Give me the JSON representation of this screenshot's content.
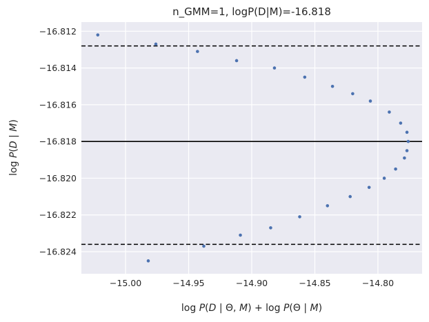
{
  "chart_data": {
    "type": "scatter",
    "title": "n_GMM=1, logP(D|M)=-16.818",
    "xlabel": "log P(D | Θ, M) + log P(Θ | M)",
    "ylabel": "log P(D | M)",
    "xlim": [
      -15.035,
      -14.765
    ],
    "ylim": [
      -16.8252,
      -16.8115
    ],
    "xticks": [
      "−15.00",
      "−14.95",
      "−14.90",
      "−14.85",
      "−14.80"
    ],
    "xtick_values": [
      -15.0,
      -14.95,
      -14.9,
      -14.85,
      -14.8
    ],
    "yticks": [
      "−16.812",
      "−16.814",
      "−16.816",
      "−16.818",
      "−16.820",
      "−16.822",
      "−16.824"
    ],
    "ytick_values": [
      -16.812,
      -16.814,
      -16.816,
      -16.818,
      -16.82,
      -16.822,
      -16.824
    ],
    "grid": true,
    "background": "#eaeaf2",
    "point_color": "#4c72b0",
    "hlines": [
      {
        "y": -16.8128,
        "style": "dashed",
        "color": "#000000"
      },
      {
        "y": -16.818,
        "style": "solid",
        "color": "#000000"
      },
      {
        "y": -16.8236,
        "style": "dashed",
        "color": "#000000"
      }
    ],
    "points": [
      {
        "x": -15.022,
        "y": -16.8122
      },
      {
        "x": -14.976,
        "y": -16.8127
      },
      {
        "x": -14.943,
        "y": -16.8131
      },
      {
        "x": -14.912,
        "y": -16.8136
      },
      {
        "x": -14.882,
        "y": -16.814
      },
      {
        "x": -14.858,
        "y": -16.8145
      },
      {
        "x": -14.836,
        "y": -16.815
      },
      {
        "x": -14.82,
        "y": -16.8154
      },
      {
        "x": -14.806,
        "y": -16.8158
      },
      {
        "x": -14.791,
        "y": -16.8164
      },
      {
        "x": -14.782,
        "y": -16.817
      },
      {
        "x": -14.777,
        "y": -16.8175
      },
      {
        "x": -14.776,
        "y": -16.818
      },
      {
        "x": -14.777,
        "y": -16.8185
      },
      {
        "x": -14.779,
        "y": -16.8189
      },
      {
        "x": -14.786,
        "y": -16.8195
      },
      {
        "x": -14.795,
        "y": -16.82
      },
      {
        "x": -14.807,
        "y": -16.8205
      },
      {
        "x": -14.822,
        "y": -16.821
      },
      {
        "x": -14.84,
        "y": -16.8215
      },
      {
        "x": -14.862,
        "y": -16.8221
      },
      {
        "x": -14.885,
        "y": -16.8227
      },
      {
        "x": -14.909,
        "y": -16.8231
      },
      {
        "x": -14.938,
        "y": -16.8237
      },
      {
        "x": -14.982,
        "y": -16.8245
      }
    ]
  }
}
